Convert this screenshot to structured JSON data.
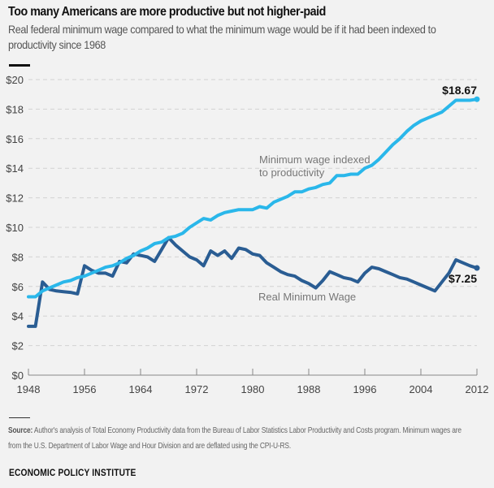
{
  "header": {
    "title": "Too many Americans are more productive but not higher-paid",
    "subtitle": "Real federal minimum wage compared to what the minimum wage would be if it had been indexed to productivity since 1968"
  },
  "footer": {
    "source_label": "Source:",
    "source_text": " Author's analysis of Total Economy Productivity data from the Bureau of Labor Statistics Labor Productivity and Costs program.  Minimum wages are from the U.S. Department of Labor Wage and Hour Division and are deflated using the CPI-U-RS.",
    "brand": "ECONOMIC POLICY INSTITUTE"
  },
  "chart_data": {
    "type": "line",
    "title": "Too many Americans are more productive but not higher-paid",
    "subtitle": "Real federal minimum wage compared to what the minimum wage would be if it had been indexed to productivity since 1968",
    "xlabel": "",
    "ylabel": "",
    "xlim": [
      1948,
      2012
    ],
    "ylim": [
      0,
      20
    ],
    "grid": true,
    "y_ticks": [
      0,
      2,
      4,
      6,
      8,
      10,
      12,
      14,
      16,
      18,
      20
    ],
    "y_tick_labels": [
      "$0",
      "$2",
      "$4",
      "$6",
      "$8",
      "$10",
      "$12",
      "$14",
      "$16",
      "$18",
      "$20"
    ],
    "x_ticks": [
      1948,
      1956,
      1964,
      1972,
      1980,
      1988,
      1996,
      2004,
      2012
    ],
    "x_tick_labels": [
      "1948",
      "1956",
      "1964",
      "1972",
      "1980",
      "1988",
      "1996",
      "2004",
      "2012"
    ],
    "x": [
      1948,
      1949,
      1950,
      1951,
      1952,
      1953,
      1954,
      1955,
      1956,
      1957,
      1958,
      1959,
      1960,
      1961,
      1962,
      1963,
      1964,
      1965,
      1966,
      1967,
      1968,
      1969,
      1970,
      1971,
      1972,
      1973,
      1974,
      1975,
      1976,
      1977,
      1978,
      1979,
      1980,
      1981,
      1982,
      1983,
      1984,
      1985,
      1986,
      1987,
      1988,
      1989,
      1990,
      1991,
      1992,
      1993,
      1994,
      1995,
      1996,
      1997,
      1998,
      1999,
      2000,
      2001,
      2002,
      2003,
      2004,
      2005,
      2006,
      2007,
      2008,
      2009,
      2010,
      2011,
      2012
    ],
    "series": [
      {
        "name": "Minimum wage indexed to productivity",
        "label_lines": [
          "Minimum wage indexed",
          "to productivity"
        ],
        "color": "#2ab7ea",
        "end_label": "$18.67",
        "values": [
          5.3,
          5.3,
          5.7,
          5.9,
          6.1,
          6.3,
          6.4,
          6.6,
          6.7,
          6.9,
          7.1,
          7.3,
          7.4,
          7.6,
          7.9,
          8.1,
          8.4,
          8.6,
          8.9,
          9.0,
          9.3,
          9.4,
          9.6,
          10.0,
          10.3,
          10.6,
          10.5,
          10.8,
          11.0,
          11.1,
          11.2,
          11.2,
          11.2,
          11.4,
          11.3,
          11.7,
          11.9,
          12.1,
          12.4,
          12.4,
          12.6,
          12.7,
          12.9,
          13.0,
          13.5,
          13.5,
          13.6,
          13.6,
          14.0,
          14.2,
          14.6,
          15.1,
          15.6,
          16.0,
          16.5,
          16.9,
          17.2,
          17.4,
          17.6,
          17.8,
          18.2,
          18.6,
          18.6,
          18.6,
          18.67
        ]
      },
      {
        "name": "Real Minimum Wage",
        "label_lines": [
          "Real Minimum Wage"
        ],
        "color": "#2a5d93",
        "end_label": "$7.25",
        "values": [
          3.3,
          3.3,
          6.3,
          5.8,
          5.7,
          5.65,
          5.6,
          5.5,
          7.4,
          7.1,
          6.9,
          6.9,
          6.7,
          7.7,
          7.6,
          8.2,
          8.1,
          8.0,
          7.7,
          8.5,
          9.3,
          8.8,
          8.4,
          8.0,
          7.8,
          7.4,
          8.4,
          8.1,
          8.4,
          7.9,
          8.6,
          8.5,
          8.2,
          8.1,
          7.6,
          7.3,
          7.0,
          6.8,
          6.7,
          6.4,
          6.2,
          5.9,
          6.4,
          7.0,
          6.8,
          6.6,
          6.5,
          6.3,
          6.9,
          7.3,
          7.2,
          7.0,
          6.8,
          6.6,
          6.5,
          6.3,
          6.1,
          5.9,
          5.7,
          6.3,
          6.9,
          7.8,
          7.6,
          7.4,
          7.25
        ]
      }
    ]
  }
}
